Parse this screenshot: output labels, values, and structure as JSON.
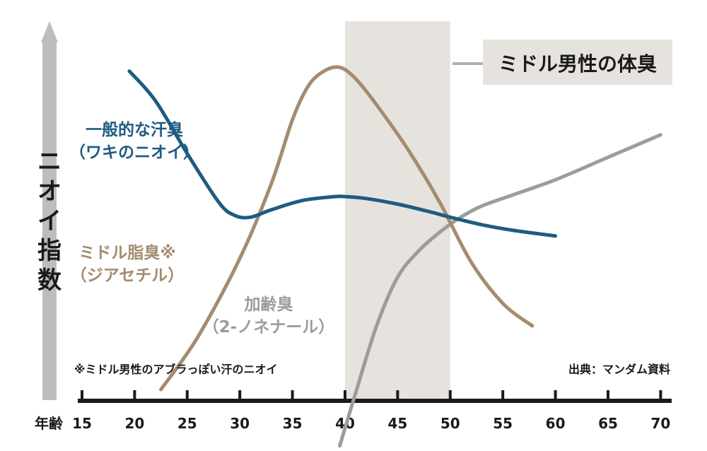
{
  "chart_data": {
    "type": "line",
    "ylabel": "ニオイ指数",
    "xlabel": "年齢",
    "x_ticks": [
      15,
      20,
      25,
      30,
      35,
      40,
      45,
      50,
      55,
      60,
      65,
      70
    ],
    "xlim": [
      15,
      70
    ],
    "highlight_range": [
      40,
      50
    ],
    "callout": "ミドル男性の体臭",
    "footnote": "※ミドル男性のアブラっぽい汗のニオイ",
    "source": "出典：マンダム資料",
    "series": [
      {
        "name_lines": [
          "一般的な汗臭",
          "（ワキのニオイ）"
        ],
        "color": "#1f5b82",
        "x": [
          19.5,
          22,
          25,
          28,
          29.5,
          31,
          33,
          36,
          39,
          40,
          42,
          45,
          48,
          50,
          53,
          56,
          60
        ],
        "y": [
          0.88,
          0.8,
          0.66,
          0.53,
          0.495,
          0.49,
          0.51,
          0.535,
          0.545,
          0.545,
          0.54,
          0.525,
          0.505,
          0.49,
          0.47,
          0.455,
          0.44
        ]
      },
      {
        "name_lines": [
          "ミドル脂臭※",
          "（ジアセチル）"
        ],
        "color": "#a48c70",
        "x": [
          22.5,
          26,
          30,
          33,
          35,
          36.5,
          38,
          39.5,
          41,
          43,
          46,
          49,
          52,
          55,
          57.8
        ],
        "y": [
          0.03,
          0.17,
          0.38,
          0.58,
          0.75,
          0.84,
          0.88,
          0.89,
          0.86,
          0.79,
          0.67,
          0.53,
          0.37,
          0.26,
          0.2
        ]
      },
      {
        "name_lines": [
          "加齢臭",
          "（2-ノネナール）"
        ],
        "color": "#9c9c9c",
        "x": [
          39.5,
          41,
          43,
          45,
          47,
          49,
          51,
          53,
          56,
          60,
          65,
          70
        ],
        "y": [
          -0.12,
          0.02,
          0.2,
          0.33,
          0.4,
          0.45,
          0.49,
          0.52,
          0.55,
          0.59,
          0.65,
          0.71
        ]
      }
    ]
  }
}
